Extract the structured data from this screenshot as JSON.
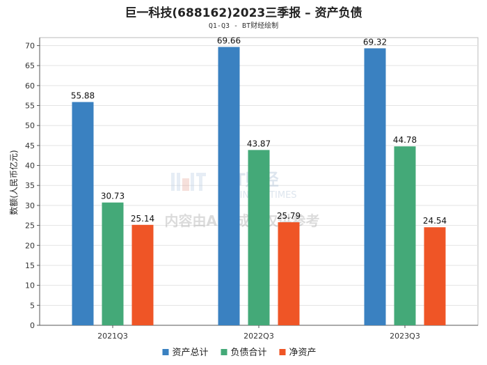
{
  "chart_data": {
    "type": "bar",
    "title": "巨一科技(688162)2023三季报 – 资产负债",
    "subtitle": "Q1-Q3 - BT财经绘制",
    "xlabel": "",
    "ylabel": "数额(人民币亿元)",
    "categories": [
      "2021Q3",
      "2022Q3",
      "2023Q3"
    ],
    "series": [
      {
        "name": "资产总计",
        "color": "#3a81c1",
        "values": [
          55.88,
          69.66,
          69.32
        ]
      },
      {
        "name": "负债合计",
        "color": "#44a978",
        "values": [
          30.73,
          43.87,
          44.78
        ]
      },
      {
        "name": "净资产",
        "color": "#ef5526",
        "values": [
          25.14,
          25.79,
          24.54
        ]
      }
    ],
    "ylim": [
      0,
      72
    ],
    "yticks": [
      0,
      5,
      10,
      15,
      20,
      25,
      30,
      35,
      40,
      45,
      50,
      55,
      60,
      65,
      70
    ],
    "grid": true,
    "legend_position": "bottom"
  },
  "watermark": {
    "brand": "BT财经",
    "brand_en": "BUSINESS TIMES",
    "notice": "内容由AI生成，仅供参考"
  }
}
